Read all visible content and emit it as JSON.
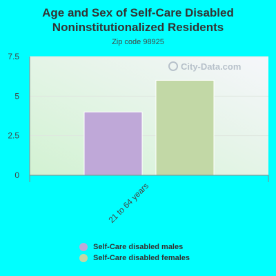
{
  "chart_data": {
    "type": "bar",
    "title_line1": "Age and Sex of Self-Care Disabled",
    "title_line2": "Noninstitutionalized Residents",
    "subtitle": "Zip code 98925",
    "categories": [
      "21 to 64 years"
    ],
    "series": [
      {
        "name": "Self-Care disabled males",
        "values": [
          4
        ],
        "color": "#bfa8d8"
      },
      {
        "name": "Self-Care disabled females",
        "values": [
          6
        ],
        "color": "#c2d8a6"
      }
    ],
    "yticks": [
      "7.5",
      "5",
      "2.5",
      "0"
    ],
    "ylim": [
      0,
      7.5
    ],
    "grid": true,
    "legend_position": "bottom",
    "watermark": "City-Data.com"
  }
}
